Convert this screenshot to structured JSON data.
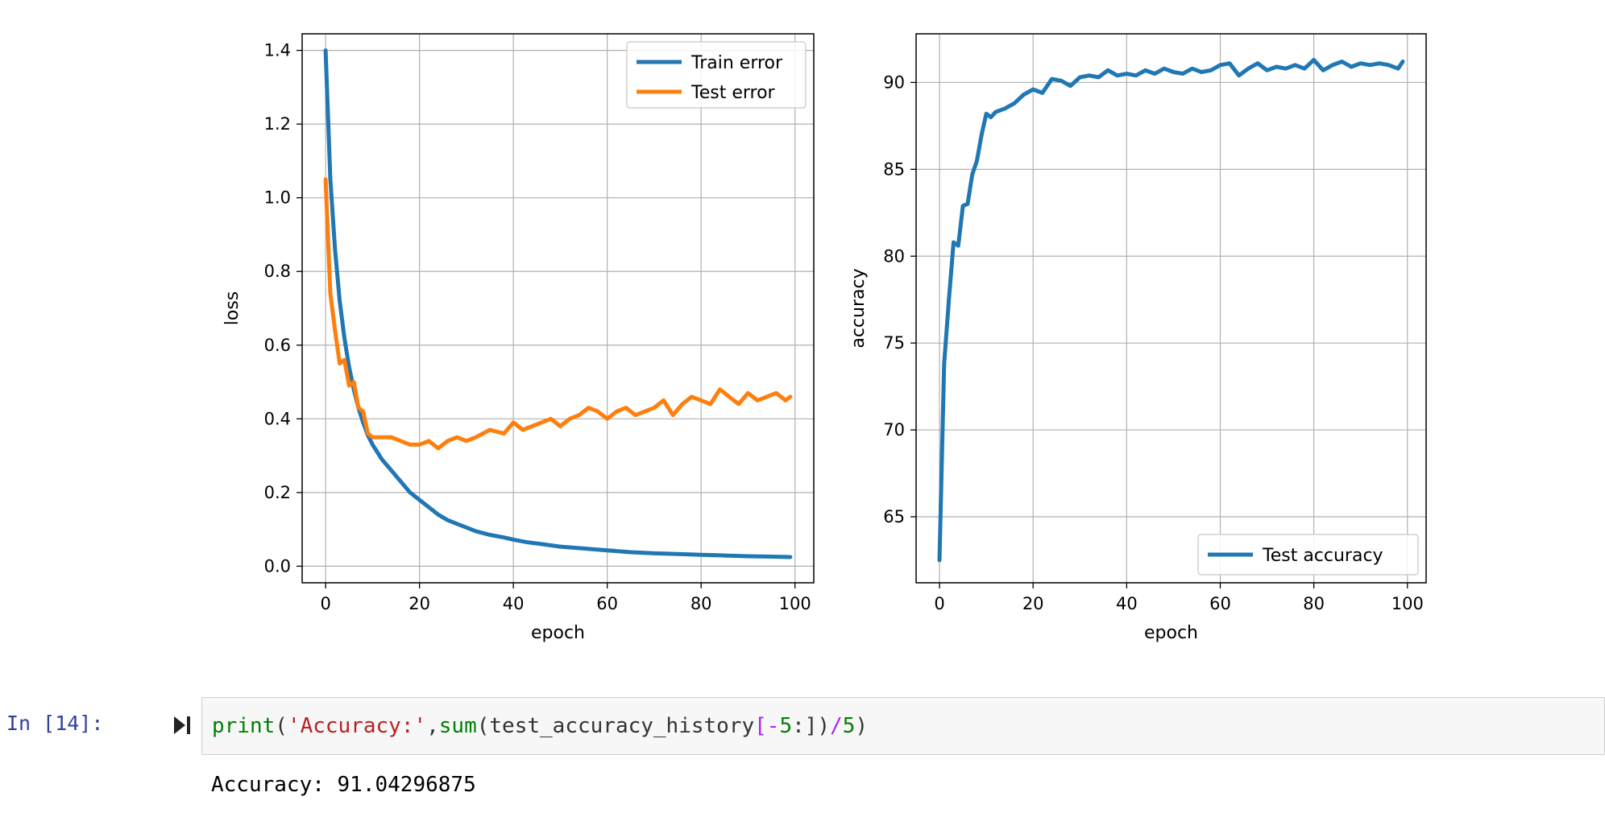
{
  "chart_data": [
    {
      "type": "line",
      "xlabel": "epoch",
      "ylabel": "loss",
      "xlim": [
        -5,
        104
      ],
      "ylim": [
        -0.045,
        1.445
      ],
      "xticks": [
        0,
        20,
        40,
        60,
        80,
        100
      ],
      "yticks": [
        0.0,
        0.2,
        0.4,
        0.6,
        0.8,
        1.0,
        1.2,
        1.4
      ],
      "ytick_labels": [
        "0.0",
        "0.2",
        "0.4",
        "0.6",
        "0.8",
        "1.0",
        "1.2",
        "1.4"
      ],
      "xtick_labels": [
        "0",
        "20",
        "40",
        "60",
        "80",
        "100"
      ],
      "grid": true,
      "legend": "top-right",
      "series": [
        {
          "name": "Train error",
          "color": "#1f77b4",
          "x": [
            0,
            1,
            2,
            3,
            4,
            5,
            6,
            7,
            8,
            9,
            10,
            12,
            14,
            16,
            18,
            20,
            22,
            24,
            26,
            28,
            30,
            32,
            35,
            38,
            40,
            43,
            46,
            50,
            55,
            60,
            65,
            70,
            75,
            80,
            85,
            90,
            95,
            99
          ],
          "y": [
            1.4,
            1.05,
            0.86,
            0.72,
            0.62,
            0.54,
            0.48,
            0.43,
            0.39,
            0.355,
            0.33,
            0.29,
            0.26,
            0.23,
            0.2,
            0.18,
            0.16,
            0.14,
            0.125,
            0.115,
            0.105,
            0.095,
            0.085,
            0.078,
            0.072,
            0.065,
            0.06,
            0.053,
            0.048,
            0.043,
            0.038,
            0.035,
            0.033,
            0.031,
            0.029,
            0.027,
            0.026,
            0.025
          ]
        },
        {
          "name": "Test error",
          "color": "#ff7f0e",
          "x": [
            0,
            1,
            2,
            3,
            4,
            5,
            6,
            7,
            8,
            9,
            10,
            12,
            14,
            16,
            18,
            20,
            22,
            24,
            26,
            28,
            30,
            32,
            35,
            38,
            40,
            42,
            44,
            46,
            48,
            50,
            52,
            54,
            56,
            58,
            60,
            62,
            64,
            66,
            68,
            70,
            72,
            74,
            76,
            78,
            80,
            82,
            84,
            86,
            88,
            90,
            92,
            94,
            96,
            98,
            99
          ],
          "y": [
            1.05,
            0.74,
            0.64,
            0.55,
            0.56,
            0.49,
            0.5,
            0.43,
            0.42,
            0.36,
            0.35,
            0.35,
            0.35,
            0.34,
            0.33,
            0.33,
            0.34,
            0.32,
            0.34,
            0.35,
            0.34,
            0.35,
            0.37,
            0.36,
            0.39,
            0.37,
            0.38,
            0.39,
            0.4,
            0.38,
            0.4,
            0.41,
            0.43,
            0.42,
            0.4,
            0.42,
            0.43,
            0.41,
            0.42,
            0.43,
            0.45,
            0.41,
            0.44,
            0.46,
            0.45,
            0.44,
            0.48,
            0.46,
            0.44,
            0.47,
            0.45,
            0.46,
            0.47,
            0.45,
            0.46
          ]
        }
      ]
    },
    {
      "type": "line",
      "xlabel": "epoch",
      "ylabel": "accuracy",
      "xlim": [
        -5,
        104
      ],
      "ylim": [
        61.2,
        92.8
      ],
      "xticks": [
        0,
        20,
        40,
        60,
        80,
        100
      ],
      "yticks": [
        65,
        70,
        75,
        80,
        85,
        90
      ],
      "ytick_labels": [
        "65",
        "70",
        "75",
        "80",
        "85",
        "90"
      ],
      "xtick_labels": [
        "0",
        "20",
        "40",
        "60",
        "80",
        "100"
      ],
      "grid": true,
      "legend": "bottom-right",
      "series": [
        {
          "name": "Test accuracy",
          "color": "#1f77b4",
          "x": [
            0,
            1,
            2,
            3,
            4,
            5,
            6,
            7,
            8,
            9,
            10,
            11,
            12,
            14,
            16,
            18,
            20,
            22,
            24,
            26,
            28,
            30,
            32,
            34,
            36,
            38,
            40,
            42,
            44,
            46,
            48,
            50,
            52,
            54,
            56,
            58,
            60,
            62,
            64,
            66,
            68,
            70,
            72,
            74,
            76,
            78,
            80,
            82,
            84,
            86,
            88,
            90,
            92,
            94,
            96,
            98,
            99
          ],
          "y": [
            62.5,
            73.8,
            77.5,
            80.8,
            80.6,
            82.9,
            83.0,
            84.7,
            85.5,
            87.0,
            88.2,
            88.0,
            88.3,
            88.5,
            88.8,
            89.3,
            89.6,
            89.4,
            90.2,
            90.1,
            89.8,
            90.3,
            90.4,
            90.3,
            90.7,
            90.4,
            90.5,
            90.4,
            90.7,
            90.5,
            90.8,
            90.6,
            90.5,
            90.8,
            90.6,
            90.7,
            91.0,
            91.1,
            90.4,
            90.8,
            91.1,
            90.7,
            90.9,
            90.8,
            91.0,
            90.8,
            91.3,
            90.7,
            91.0,
            91.2,
            90.9,
            91.1,
            91.0,
            91.1,
            91.0,
            90.8,
            91.2
          ]
        }
      ]
    }
  ],
  "cell": {
    "prompt": "In  [14]:",
    "code": {
      "func": "print",
      "open": "(",
      "string": "'Accuracy:'",
      "comma": ",",
      "func2": "sum",
      "open2": "(",
      "var": "test_accuracy_history",
      "bracket_open": "[",
      "minus": "-",
      "num1": "5",
      "slice_close": ":])",
      "slash": "/",
      "num2": "5",
      "close": ")"
    },
    "output": "Accuracy: 91.04296875"
  }
}
